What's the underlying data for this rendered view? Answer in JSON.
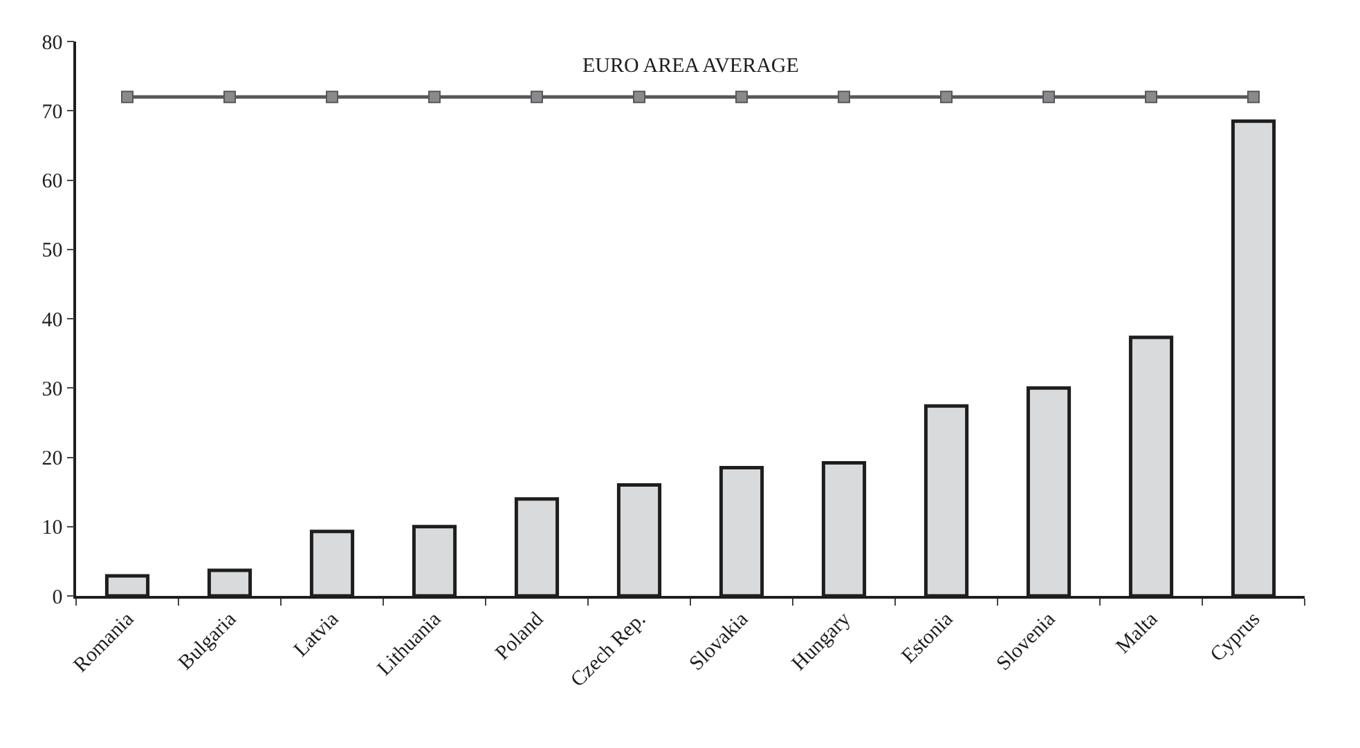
{
  "chart_data": {
    "type": "bar",
    "categories": [
      "Romania",
      "Bulgaria",
      "Latvia",
      "Lithuania",
      "Poland",
      "Czech Rep.",
      "Slovakia",
      "Hungary",
      "Estonia",
      "Slovenia",
      "Malta",
      "Cyprus"
    ],
    "series": [
      {
        "color": "#d9dadb",
        "values": [
          2.9,
          3.7,
          9.3,
          10,
          14,
          16,
          18.5,
          19.2,
          27.4,
          30,
          37.3,
          68.5
        ]
      },
      {
        "type": "line",
        "name": "EURO AREA AVERAGE",
        "color": "#58585a",
        "marker": "square",
        "values": [
          72,
          72,
          72,
          72,
          72,
          72,
          72,
          72,
          72,
          72,
          72,
          72
        ]
      }
    ],
    "ylim": [
      0,
      80
    ],
    "yticks": [
      0,
      10,
      20,
      30,
      40,
      50,
      60,
      70,
      80
    ],
    "grid": false,
    "legend": false
  }
}
